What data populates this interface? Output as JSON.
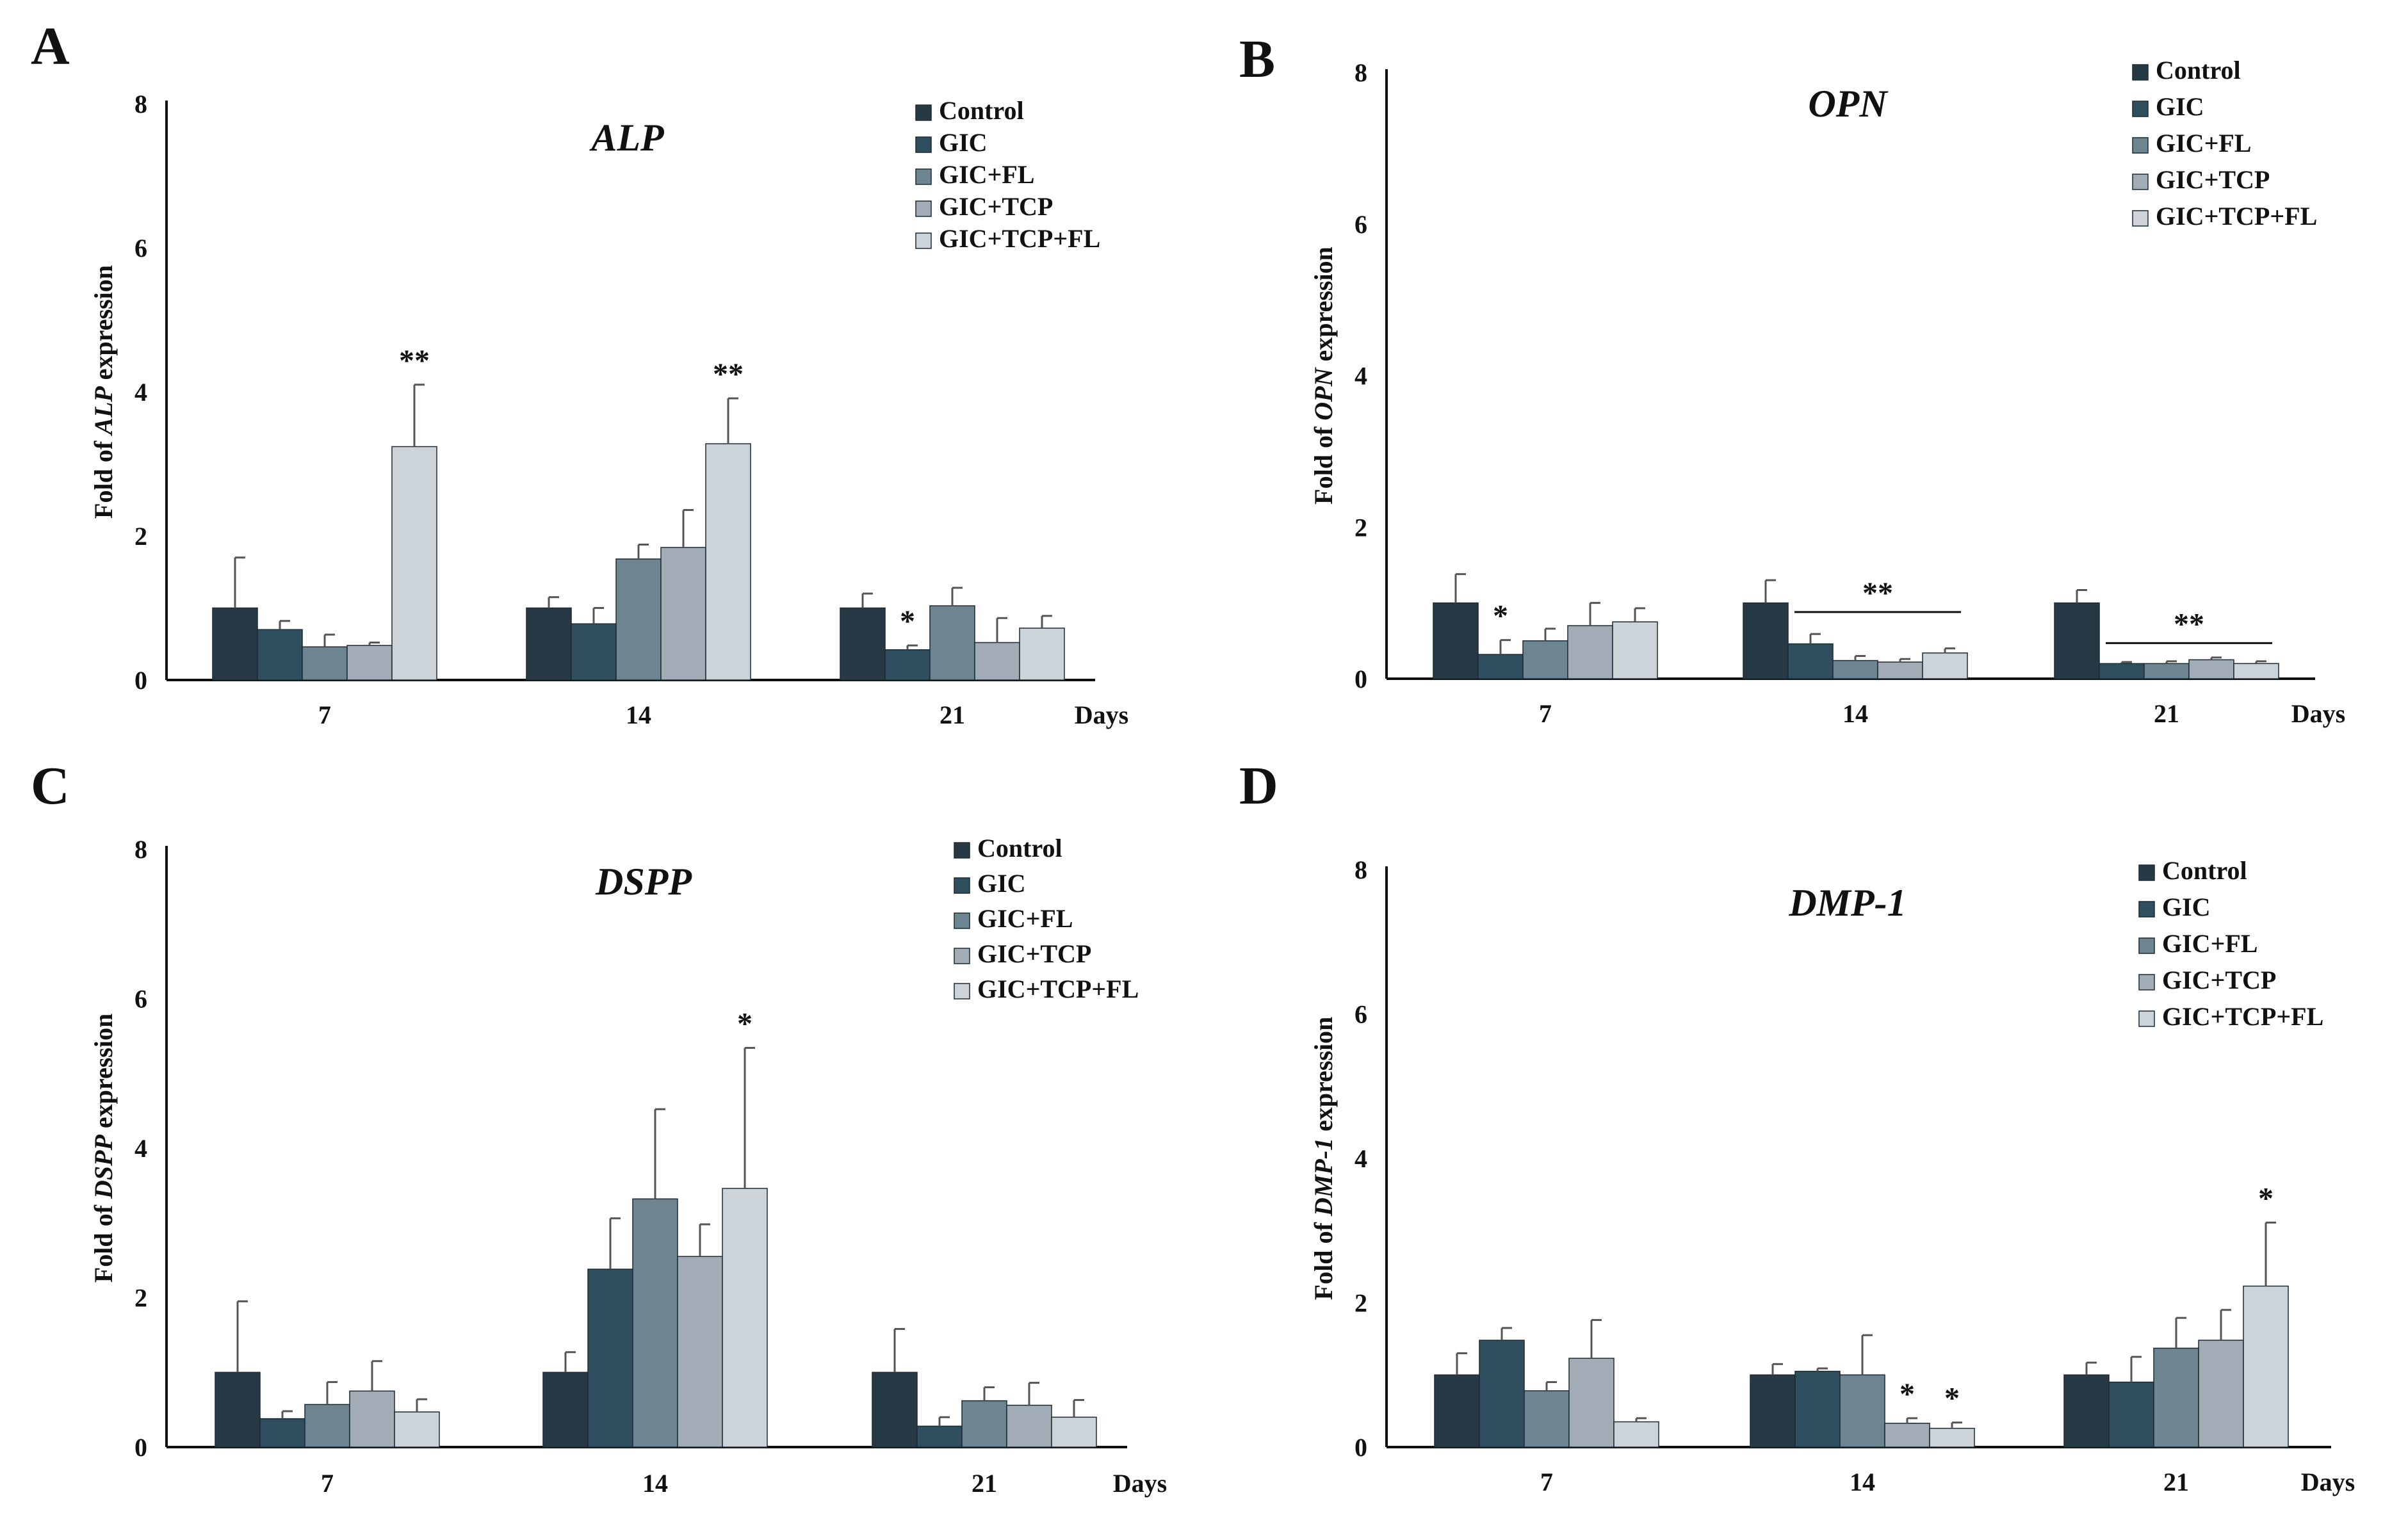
{
  "colors": {
    "Control": "#263944",
    "GIC": "#2f4e5e",
    "GIC+FL": "#6c8591",
    "GIC+TCP": "#a1acb6",
    "GIC+TCP+FL": "#cdd4d9",
    "axis": "#111111"
  },
  "chart_data": [
    {
      "panel": "A",
      "type": "bar",
      "title": "ALP",
      "ylabel_prefix": "Fold of ",
      "ylabel_gene": "ALP",
      "ylabel_suffix": " expression",
      "xlabel": "Days",
      "ylim": [
        0,
        8
      ],
      "yticks": [
        "0",
        "2",
        "4",
        "6",
        "8"
      ],
      "categories": [
        "7",
        "14",
        "21"
      ],
      "series": [
        {
          "name": "Control",
          "values": [
            1.0,
            1.0,
            1.0
          ],
          "errors": [
            0.7,
            0.15,
            0.2
          ]
        },
        {
          "name": "GIC",
          "values": [
            0.7,
            0.78,
            0.42
          ],
          "errors": [
            0.12,
            0.22,
            0.06
          ]
        },
        {
          "name": "GIC+FL",
          "values": [
            0.46,
            1.68,
            1.03
          ],
          "errors": [
            0.17,
            0.2,
            0.25
          ]
        },
        {
          "name": "GIC+TCP",
          "values": [
            0.48,
            1.84,
            0.52
          ],
          "errors": [
            0.04,
            0.52,
            0.34
          ]
        },
        {
          "name": "GIC+TCP+FL",
          "values": [
            3.24,
            3.28,
            0.72
          ],
          "errors": [
            0.86,
            0.63,
            0.17
          ]
        }
      ],
      "annotations": [
        {
          "text": "**",
          "category": 0,
          "series": 4
        },
        {
          "text": "**",
          "category": 1,
          "series": 4
        },
        {
          "text": "*",
          "category": 2,
          "series": 1
        }
      ],
      "brackets": []
    },
    {
      "panel": "B",
      "type": "bar",
      "title": "OPN",
      "ylabel_prefix": "Fold of ",
      "ylabel_gene": "OPN",
      "ylabel_suffix": " expression",
      "xlabel": "Days",
      "ylim": [
        0,
        8
      ],
      "yticks": [
        "0",
        "2",
        "4",
        "6",
        "8"
      ],
      "categories": [
        "7",
        "14",
        "21"
      ],
      "series": [
        {
          "name": "Control",
          "values": [
            1.0,
            1.0,
            1.0
          ],
          "errors": [
            0.38,
            0.3,
            0.17
          ]
        },
        {
          "name": "GIC",
          "values": [
            0.32,
            0.46,
            0.2
          ],
          "errors": [
            0.19,
            0.13,
            0.02
          ]
        },
        {
          "name": "GIC+FL",
          "values": [
            0.5,
            0.24,
            0.2
          ],
          "errors": [
            0.16,
            0.06,
            0.03
          ]
        },
        {
          "name": "GIC+TCP",
          "values": [
            0.7,
            0.22,
            0.25
          ],
          "errors": [
            0.3,
            0.04,
            0.03
          ]
        },
        {
          "name": "GIC+TCP+FL",
          "values": [
            0.75,
            0.34,
            0.2
          ],
          "errors": [
            0.18,
            0.06,
            0.03
          ]
        }
      ],
      "annotations": [
        {
          "text": "*",
          "category": 0,
          "series": 1
        }
      ],
      "brackets": [
        {
          "text": "**",
          "category": 1,
          "from_series": 1,
          "to_series": 4,
          "value": 0.88
        },
        {
          "text": "**",
          "category": 2,
          "from_series": 1,
          "to_series": 4,
          "value": 0.47
        }
      ]
    },
    {
      "panel": "C",
      "type": "bar",
      "title": "DSPP",
      "ylabel_prefix": "Fold of ",
      "ylabel_gene": "DSPP",
      "ylabel_suffix": " expression",
      "xlabel": "Days",
      "ylim": [
        0,
        8
      ],
      "yticks": [
        "0",
        "2",
        "4",
        "6",
        "8"
      ],
      "categories": [
        "7",
        "14",
        "21"
      ],
      "series": [
        {
          "name": "Control",
          "values": [
            1.0,
            1.0,
            1.0
          ],
          "errors": [
            0.95,
            0.27,
            0.58
          ]
        },
        {
          "name": "GIC",
          "values": [
            0.38,
            2.38,
            0.28
          ],
          "errors": [
            0.1,
            0.68,
            0.12
          ]
        },
        {
          "name": "GIC+FL",
          "values": [
            0.57,
            3.32,
            0.62
          ],
          "errors": [
            0.3,
            1.2,
            0.18
          ]
        },
        {
          "name": "GIC+TCP",
          "values": [
            0.75,
            2.55,
            0.56
          ],
          "errors": [
            0.4,
            0.43,
            0.3
          ]
        },
        {
          "name": "GIC+TCP+FL",
          "values": [
            0.47,
            3.46,
            0.4
          ],
          "errors": [
            0.17,
            1.88,
            0.23
          ]
        }
      ],
      "annotations": [
        {
          "text": "*",
          "category": 1,
          "series": 4
        }
      ],
      "brackets": []
    },
    {
      "panel": "D",
      "type": "bar",
      "title": "DMP-1",
      "ylabel_prefix": "Fold of ",
      "ylabel_gene": "DMP-1",
      "ylabel_suffix": " expression",
      "xlabel": "Days",
      "ylim": [
        0,
        8
      ],
      "yticks": [
        "0",
        "2",
        "4",
        "6",
        "8"
      ],
      "categories": [
        "7",
        "14",
        "21"
      ],
      "series": [
        {
          "name": "Control",
          "values": [
            1.0,
            1.0,
            1.0
          ],
          "errors": [
            0.3,
            0.15,
            0.17
          ]
        },
        {
          "name": "GIC",
          "values": [
            1.48,
            1.05,
            0.9
          ],
          "errors": [
            0.17,
            0.04,
            0.35
          ]
        },
        {
          "name": "GIC+FL",
          "values": [
            0.78,
            1.0,
            1.37
          ],
          "errors": [
            0.12,
            0.55,
            0.42
          ]
        },
        {
          "name": "GIC+TCP",
          "values": [
            1.23,
            0.33,
            1.48
          ],
          "errors": [
            0.53,
            0.07,
            0.42
          ]
        },
        {
          "name": "GIC+TCP+FL",
          "values": [
            0.35,
            0.26,
            2.23
          ],
          "errors": [
            0.05,
            0.08,
            0.88
          ]
        }
      ],
      "annotations": [
        {
          "text": "*",
          "category": 1,
          "series": 3
        },
        {
          "text": "*",
          "category": 1,
          "series": 4
        },
        {
          "text": "*",
          "category": 2,
          "series": 4
        }
      ],
      "brackets": []
    }
  ]
}
